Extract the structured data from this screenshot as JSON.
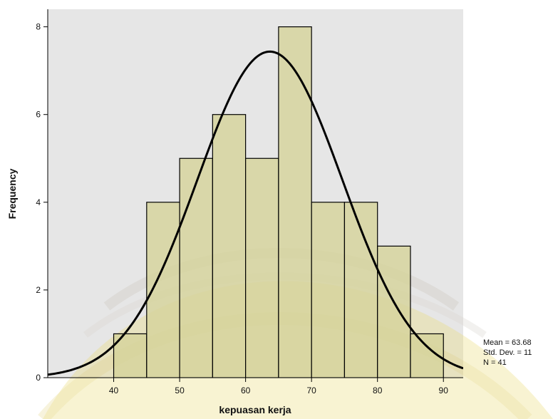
{
  "chart_data": {
    "type": "histogram",
    "xlabel": "kepuasan kerja",
    "ylabel": "Frequency",
    "xlim": [
      30,
      93
    ],
    "ylim": [
      0,
      8.4
    ],
    "x_ticks": [
      40,
      50,
      60,
      70,
      80,
      90
    ],
    "y_ticks": [
      0,
      2,
      4,
      6,
      8
    ],
    "bins": [
      {
        "from": 40,
        "to": 45,
        "count": 1
      },
      {
        "from": 45,
        "to": 50,
        "count": 4
      },
      {
        "from": 50,
        "to": 55,
        "count": 5
      },
      {
        "from": 55,
        "to": 60,
        "count": 6
      },
      {
        "from": 60,
        "to": 65,
        "count": 5
      },
      {
        "from": 65,
        "to": 70,
        "count": 8
      },
      {
        "from": 70,
        "to": 75,
        "count": 4
      },
      {
        "from": 75,
        "to": 80,
        "count": 4
      },
      {
        "from": 80,
        "to": 85,
        "count": 3
      },
      {
        "from": 85,
        "to": 90,
        "count": 1
      }
    ],
    "normal_curve": {
      "mean": 63.68,
      "sd": 11,
      "n": 41,
      "bin_width": 5
    },
    "stats_text": [
      "Mean = 63.68",
      "Std. Dev. = 11",
      "N = 41"
    ],
    "colors": {
      "plot_background": "#e6e6e6",
      "bar_fill": "#d6d39b",
      "bar_stroke": "#000000",
      "curve": "#000000",
      "watermark": "#e9d96a"
    }
  }
}
